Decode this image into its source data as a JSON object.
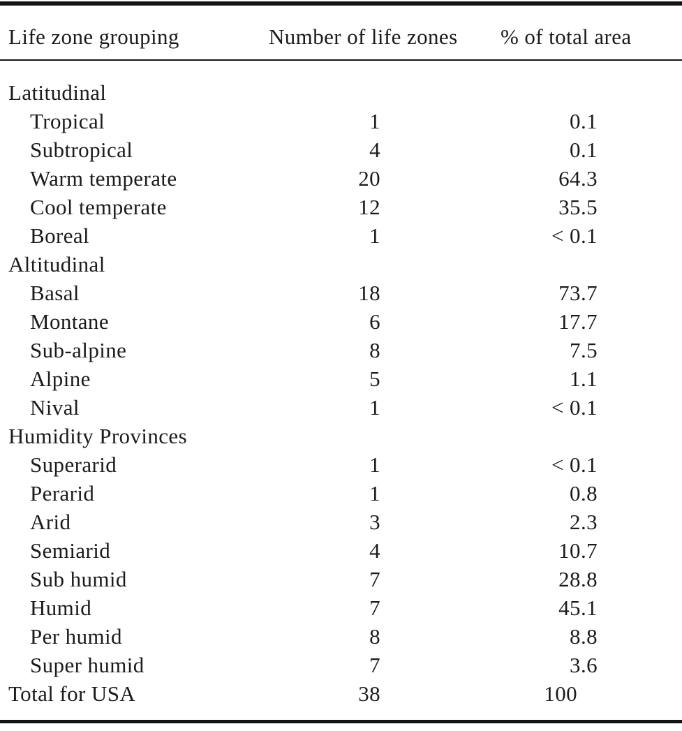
{
  "colors": {
    "background": "#ffffff",
    "text": "#1b1b1b",
    "rule": "#141414"
  },
  "table": {
    "columns": [
      "Life zone grouping",
      "Number of life zones",
      "% of total area"
    ],
    "rows": [
      {
        "type": "group",
        "label": "Latitudinal",
        "zones": "",
        "pct": ""
      },
      {
        "type": "item",
        "label": "Tropical",
        "zones": "1",
        "pct": "0.1"
      },
      {
        "type": "item",
        "label": "Subtropical",
        "zones": "4",
        "pct": "0.1"
      },
      {
        "type": "item",
        "label": "Warm temperate",
        "zones": "20",
        "pct": "64.3"
      },
      {
        "type": "item",
        "label": "Cool temperate",
        "zones": "12",
        "pct": "35.5"
      },
      {
        "type": "item",
        "label": "Boreal",
        "zones": "1",
        "pct": "< 0.1"
      },
      {
        "type": "group",
        "label": "Altitudinal",
        "zones": "",
        "pct": ""
      },
      {
        "type": "item",
        "label": "Basal",
        "zones": "18",
        "pct": "73.7"
      },
      {
        "type": "item",
        "label": "Montane",
        "zones": "6",
        "pct": "17.7"
      },
      {
        "type": "item",
        "label": "Sub-alpine",
        "zones": "8",
        "pct": "7.5"
      },
      {
        "type": "item",
        "label": "Alpine",
        "zones": "5",
        "pct": "1.1"
      },
      {
        "type": "item",
        "label": "Nival",
        "zones": "1",
        "pct": "< 0.1"
      },
      {
        "type": "group",
        "label": "Humidity Provinces",
        "zones": "",
        "pct": ""
      },
      {
        "type": "item",
        "label": "Superarid",
        "zones": "1",
        "pct": "< 0.1"
      },
      {
        "type": "item",
        "label": "Perarid",
        "zones": "1",
        "pct": "0.8"
      },
      {
        "type": "item",
        "label": "Arid",
        "zones": "3",
        "pct": "2.3"
      },
      {
        "type": "item",
        "label": "Semiarid",
        "zones": "4",
        "pct": "10.7"
      },
      {
        "type": "item",
        "label": "Sub humid",
        "zones": "7",
        "pct": "28.8"
      },
      {
        "type": "item",
        "label": "Humid",
        "zones": "7",
        "pct": "45.1"
      },
      {
        "type": "item",
        "label": "Per humid",
        "zones": "8",
        "pct": "8.8"
      },
      {
        "type": "item",
        "label": "Super humid",
        "zones": "7",
        "pct": "3.6"
      },
      {
        "type": "total",
        "label": "Total for USA",
        "zones": "38",
        "pct": "100"
      }
    ]
  }
}
